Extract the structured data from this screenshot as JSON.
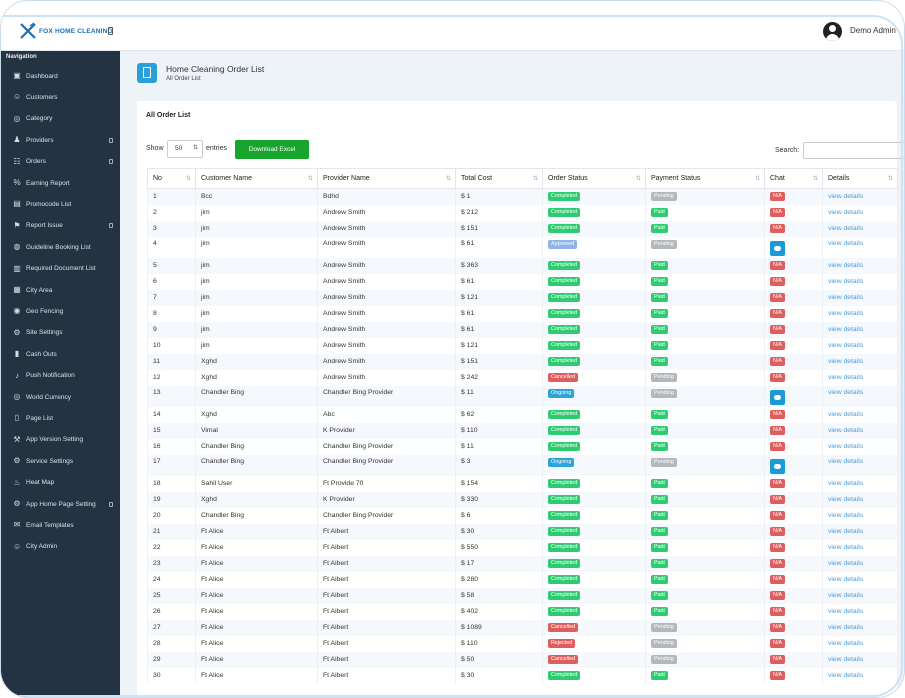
{
  "app": {
    "logo_text": "FOX HOME CLEANING",
    "user_name": "Demo Admin"
  },
  "sidebar": {
    "title": "Navigation",
    "items": [
      {
        "label": "Dashboard",
        "icon": "dashboard-icon",
        "has_caret": false
      },
      {
        "label": "Customers",
        "icon": "users-icon",
        "has_caret": false
      },
      {
        "label": "Category",
        "icon": "category-icon",
        "has_caret": false
      },
      {
        "label": "Providers",
        "icon": "providers-icon",
        "has_caret": true
      },
      {
        "label": "Orders",
        "icon": "cart-icon",
        "has_caret": true
      },
      {
        "label": "Earning Report",
        "icon": "percent-icon",
        "has_caret": false
      },
      {
        "label": "Promocode List",
        "icon": "promocode-icon",
        "has_caret": false
      },
      {
        "label": "Report Issue",
        "icon": "report-icon",
        "has_caret": true
      },
      {
        "label": "Guideline Booking List",
        "icon": "globe-icon",
        "has_caret": false
      },
      {
        "label": "Required Document List",
        "icon": "document-icon",
        "has_caret": false
      },
      {
        "label": "City Area",
        "icon": "map-icon",
        "has_caret": false
      },
      {
        "label": "Geo Fencing",
        "icon": "geo-fencing-icon",
        "has_caret": false
      },
      {
        "label": "Site Settings",
        "icon": "settings-icon",
        "has_caret": false
      },
      {
        "label": "Cash Outs",
        "icon": "cash-icon",
        "has_caret": false
      },
      {
        "label": "Push Notification",
        "icon": "bell-icon",
        "has_caret": false
      },
      {
        "label": "World Currency",
        "icon": "currency-icon",
        "has_caret": false
      },
      {
        "label": "Page List",
        "icon": "page-icon",
        "has_caret": false
      },
      {
        "label": "App Version Setting",
        "icon": "tools-icon",
        "has_caret": false
      },
      {
        "label": "Service Settings",
        "icon": "gear-icon",
        "has_caret": false
      },
      {
        "label": "Heat Map",
        "icon": "heat-map-icon",
        "has_caret": false
      },
      {
        "label": "App Home Page Setting",
        "icon": "cogs-icon",
        "has_caret": true
      },
      {
        "label": "Email Templates",
        "icon": "email-icon",
        "has_caret": false
      },
      {
        "label": "City Admin",
        "icon": "city-admin-icon",
        "has_caret": false
      }
    ]
  },
  "page": {
    "title": "Home Cleaning Order List",
    "subtitle": "All Order List"
  },
  "panel": {
    "title": "All Order List",
    "show_label": "Show",
    "entries_value": "50",
    "entries_label": "entries",
    "download_label": "Download Excel",
    "search_label": "Search:"
  },
  "table": {
    "columns": [
      "No",
      "Customer Name",
      "Provider Name",
      "Total Cost",
      "Order Status",
      "Payment Status",
      "Chat",
      "Details"
    ],
    "rows": [
      {
        "no": "1",
        "customer": "Bcc",
        "provider": "Bdhd",
        "cost": "$ 1",
        "order_status": "Completed",
        "payment_status": "Pending",
        "chat": "N/A",
        "details": "view details"
      },
      {
        "no": "2",
        "customer": "jim",
        "provider": "Andrew Smith",
        "cost": "$ 212",
        "order_status": "Completed",
        "payment_status": "Paid",
        "chat": "N/A",
        "details": "view details"
      },
      {
        "no": "3",
        "customer": "jim",
        "provider": "Andrew Smith",
        "cost": "$ 151",
        "order_status": "Completed",
        "payment_status": "Paid",
        "chat": "N/A",
        "details": "view details"
      },
      {
        "no": "4",
        "customer": "jim",
        "provider": "Andrew Smith",
        "cost": "$ 61",
        "order_status": "Approved",
        "payment_status": "Pending",
        "chat": "button",
        "details": "view details"
      },
      {
        "no": "5",
        "customer": "jim",
        "provider": "Andrew Smith",
        "cost": "$ 363",
        "order_status": "Completed",
        "payment_status": "Paid",
        "chat": "N/A",
        "details": "view details"
      },
      {
        "no": "6",
        "customer": "jim",
        "provider": "Andrew Smith",
        "cost": "$ 61",
        "order_status": "Completed",
        "payment_status": "Paid",
        "chat": "N/A",
        "details": "view details"
      },
      {
        "no": "7",
        "customer": "jim",
        "provider": "Andrew Smith",
        "cost": "$ 121",
        "order_status": "Completed",
        "payment_status": "Paid",
        "chat": "N/A",
        "details": "view details"
      },
      {
        "no": "8",
        "customer": "jim",
        "provider": "Andrew Smith",
        "cost": "$ 61",
        "order_status": "Completed",
        "payment_status": "Paid",
        "chat": "N/A",
        "details": "view details"
      },
      {
        "no": "9",
        "customer": "jim",
        "provider": "Andrew Smith",
        "cost": "$ 61",
        "order_status": "Completed",
        "payment_status": "Paid",
        "chat": "N/A",
        "details": "view details"
      },
      {
        "no": "10",
        "customer": "jim",
        "provider": "Andrew Smith",
        "cost": "$ 121",
        "order_status": "Completed",
        "payment_status": "Paid",
        "chat": "N/A",
        "details": "view details"
      },
      {
        "no": "11",
        "customer": "Xghd",
        "provider": "Andrew Smith",
        "cost": "$ 151",
        "order_status": "Completed",
        "payment_status": "Paid",
        "chat": "N/A",
        "details": "view details"
      },
      {
        "no": "12",
        "customer": "Xghd",
        "provider": "Andrew Smith",
        "cost": "$ 242",
        "order_status": "Cancelled",
        "payment_status": "Pending",
        "chat": "N/A",
        "details": "view details"
      },
      {
        "no": "13",
        "customer": "Chandler Bing",
        "provider": "Chandler Bing Provider",
        "cost": "$ 11",
        "order_status": "Ongoing",
        "payment_status": "Pending",
        "chat": "button",
        "details": "view details"
      },
      {
        "no": "14",
        "customer": "Xghd",
        "provider": "Abc",
        "cost": "$ 62",
        "order_status": "Completed",
        "payment_status": "Paid",
        "chat": "N/A",
        "details": "view details"
      },
      {
        "no": "15",
        "customer": "Vimal",
        "provider": "K Provider",
        "cost": "$ 110",
        "order_status": "Completed",
        "payment_status": "Paid",
        "chat": "N/A",
        "details": "view details"
      },
      {
        "no": "16",
        "customer": "Chandler Bing",
        "provider": "Chandler Bing Provider",
        "cost": "$ 11",
        "order_status": "Completed",
        "payment_status": "Paid",
        "chat": "N/A",
        "details": "view details"
      },
      {
        "no": "17",
        "customer": "Chandler Bing",
        "provider": "Chandler Bing Provider",
        "cost": "$ 3",
        "order_status": "Ongoing",
        "payment_status": "Pending",
        "chat": "button",
        "details": "view details"
      },
      {
        "no": "18",
        "customer": "Sahil User",
        "provider": "Ft Provide 70",
        "cost": "$ 154",
        "order_status": "Completed",
        "payment_status": "Paid",
        "chat": "N/A",
        "details": "view details"
      },
      {
        "no": "19",
        "customer": "Xghd",
        "provider": "K Provider",
        "cost": "$ 330",
        "order_status": "Completed",
        "payment_status": "Paid",
        "chat": "N/A",
        "details": "view details"
      },
      {
        "no": "20",
        "customer": "Chandler Bing",
        "provider": "Chandler Bing Provider",
        "cost": "$ 6",
        "order_status": "Completed",
        "payment_status": "Paid",
        "chat": "N/A",
        "details": "view details"
      },
      {
        "no": "21",
        "customer": "Ft Alice",
        "provider": "Ft Albert",
        "cost": "$ 30",
        "order_status": "Completed",
        "payment_status": "Paid",
        "chat": "N/A",
        "details": "view details"
      },
      {
        "no": "22",
        "customer": "Ft Alice",
        "provider": "Ft Albert",
        "cost": "$ 550",
        "order_status": "Completed",
        "payment_status": "Paid",
        "chat": "N/A",
        "details": "view details"
      },
      {
        "no": "23",
        "customer": "Ft Alice",
        "provider": "Ft Albert",
        "cost": "$ 17",
        "order_status": "Completed",
        "payment_status": "Paid",
        "chat": "N/A",
        "details": "view details"
      },
      {
        "no": "24",
        "customer": "Ft Alice",
        "provider": "Ft Albert",
        "cost": "$ 280",
        "order_status": "Completed",
        "payment_status": "Paid",
        "chat": "N/A",
        "details": "view details"
      },
      {
        "no": "25",
        "customer": "Ft Alice",
        "provider": "Ft Albert",
        "cost": "$ 58",
        "order_status": "Completed",
        "payment_status": "Paid",
        "chat": "N/A",
        "details": "view details"
      },
      {
        "no": "26",
        "customer": "Ft Alice",
        "provider": "Ft Albert",
        "cost": "$ 402",
        "order_status": "Completed",
        "payment_status": "Paid",
        "chat": "N/A",
        "details": "view details"
      },
      {
        "no": "27",
        "customer": "Ft Alice",
        "provider": "Ft Albert",
        "cost": "$ 1089",
        "order_status": "Cancelled",
        "payment_status": "Pending",
        "chat": "N/A",
        "details": "view details"
      },
      {
        "no": "28",
        "customer": "Ft Alice",
        "provider": "Ft Albert",
        "cost": "$ 110",
        "order_status": "Rejected",
        "payment_status": "Pending",
        "chat": "N/A",
        "details": "view details"
      },
      {
        "no": "29",
        "customer": "Ft Alice",
        "provider": "Ft Albert",
        "cost": "$ 50",
        "order_status": "Cancelled",
        "payment_status": "Pending",
        "chat": "N/A",
        "details": "view details"
      },
      {
        "no": "30",
        "customer": "Ft Alice",
        "provider": "Ft Albert",
        "cost": "$ 30",
        "order_status": "Completed",
        "payment_status": "Paid",
        "chat": "N/A",
        "details": "view details"
      }
    ]
  },
  "colors": {
    "sidebar_bg": "#243342",
    "accent_blue": "#2a9fd8",
    "download_green": "#17a52e",
    "status_completed": "#2ecc71",
    "status_approved": "#8fb4e8",
    "status_ongoing": "#2aa5d6",
    "status_cancelled": "#e05d5d",
    "status_pending": "#b5b8bb",
    "status_na": "#e05d5d",
    "link": "#4c9bd9"
  }
}
